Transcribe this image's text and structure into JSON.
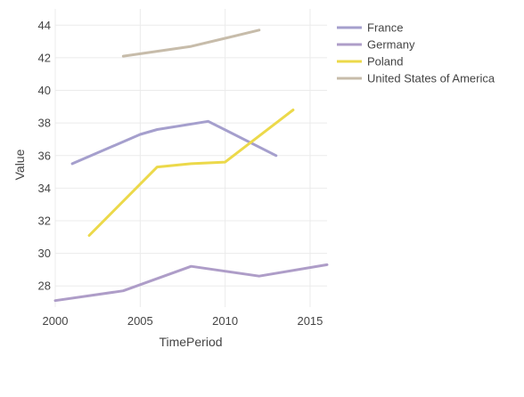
{
  "chart_data": {
    "type": "line",
    "title": "",
    "xlabel": "TimePeriod",
    "ylabel": "Value",
    "xlim": [
      2000,
      2016
    ],
    "ylim": [
      26.7,
      45.0
    ],
    "x_ticks": [
      2000,
      2005,
      2010,
      2015
    ],
    "y_ticks": [
      28,
      30,
      32,
      34,
      36,
      38,
      40,
      42,
      44
    ],
    "grid": true,
    "legend_position": "right",
    "series": [
      {
        "name": "France",
        "color": "#a59fcd",
        "x": [
          2001,
          2005,
          2006,
          2009,
          2013
        ],
        "y": [
          35.5,
          37.3,
          37.6,
          38.1,
          36.0
        ]
      },
      {
        "name": "Germany",
        "color": "#ae9dc8",
        "x": [
          2000,
          2004,
          2008,
          2010,
          2012,
          2016
        ],
        "y": [
          27.1,
          27.7,
          29.2,
          28.9,
          28.6,
          29.3
        ]
      },
      {
        "name": "Poland",
        "color": "#ecd94a",
        "x": [
          2002,
          2006,
          2008,
          2010,
          2014
        ],
        "y": [
          31.1,
          35.3,
          35.5,
          35.6,
          38.8
        ]
      },
      {
        "name": "United States of America",
        "color": "#c7bcaa",
        "x": [
          2004,
          2006,
          2008,
          2010,
          2012
        ],
        "y": [
          42.1,
          42.4,
          42.7,
          43.2,
          43.7
        ]
      }
    ]
  }
}
